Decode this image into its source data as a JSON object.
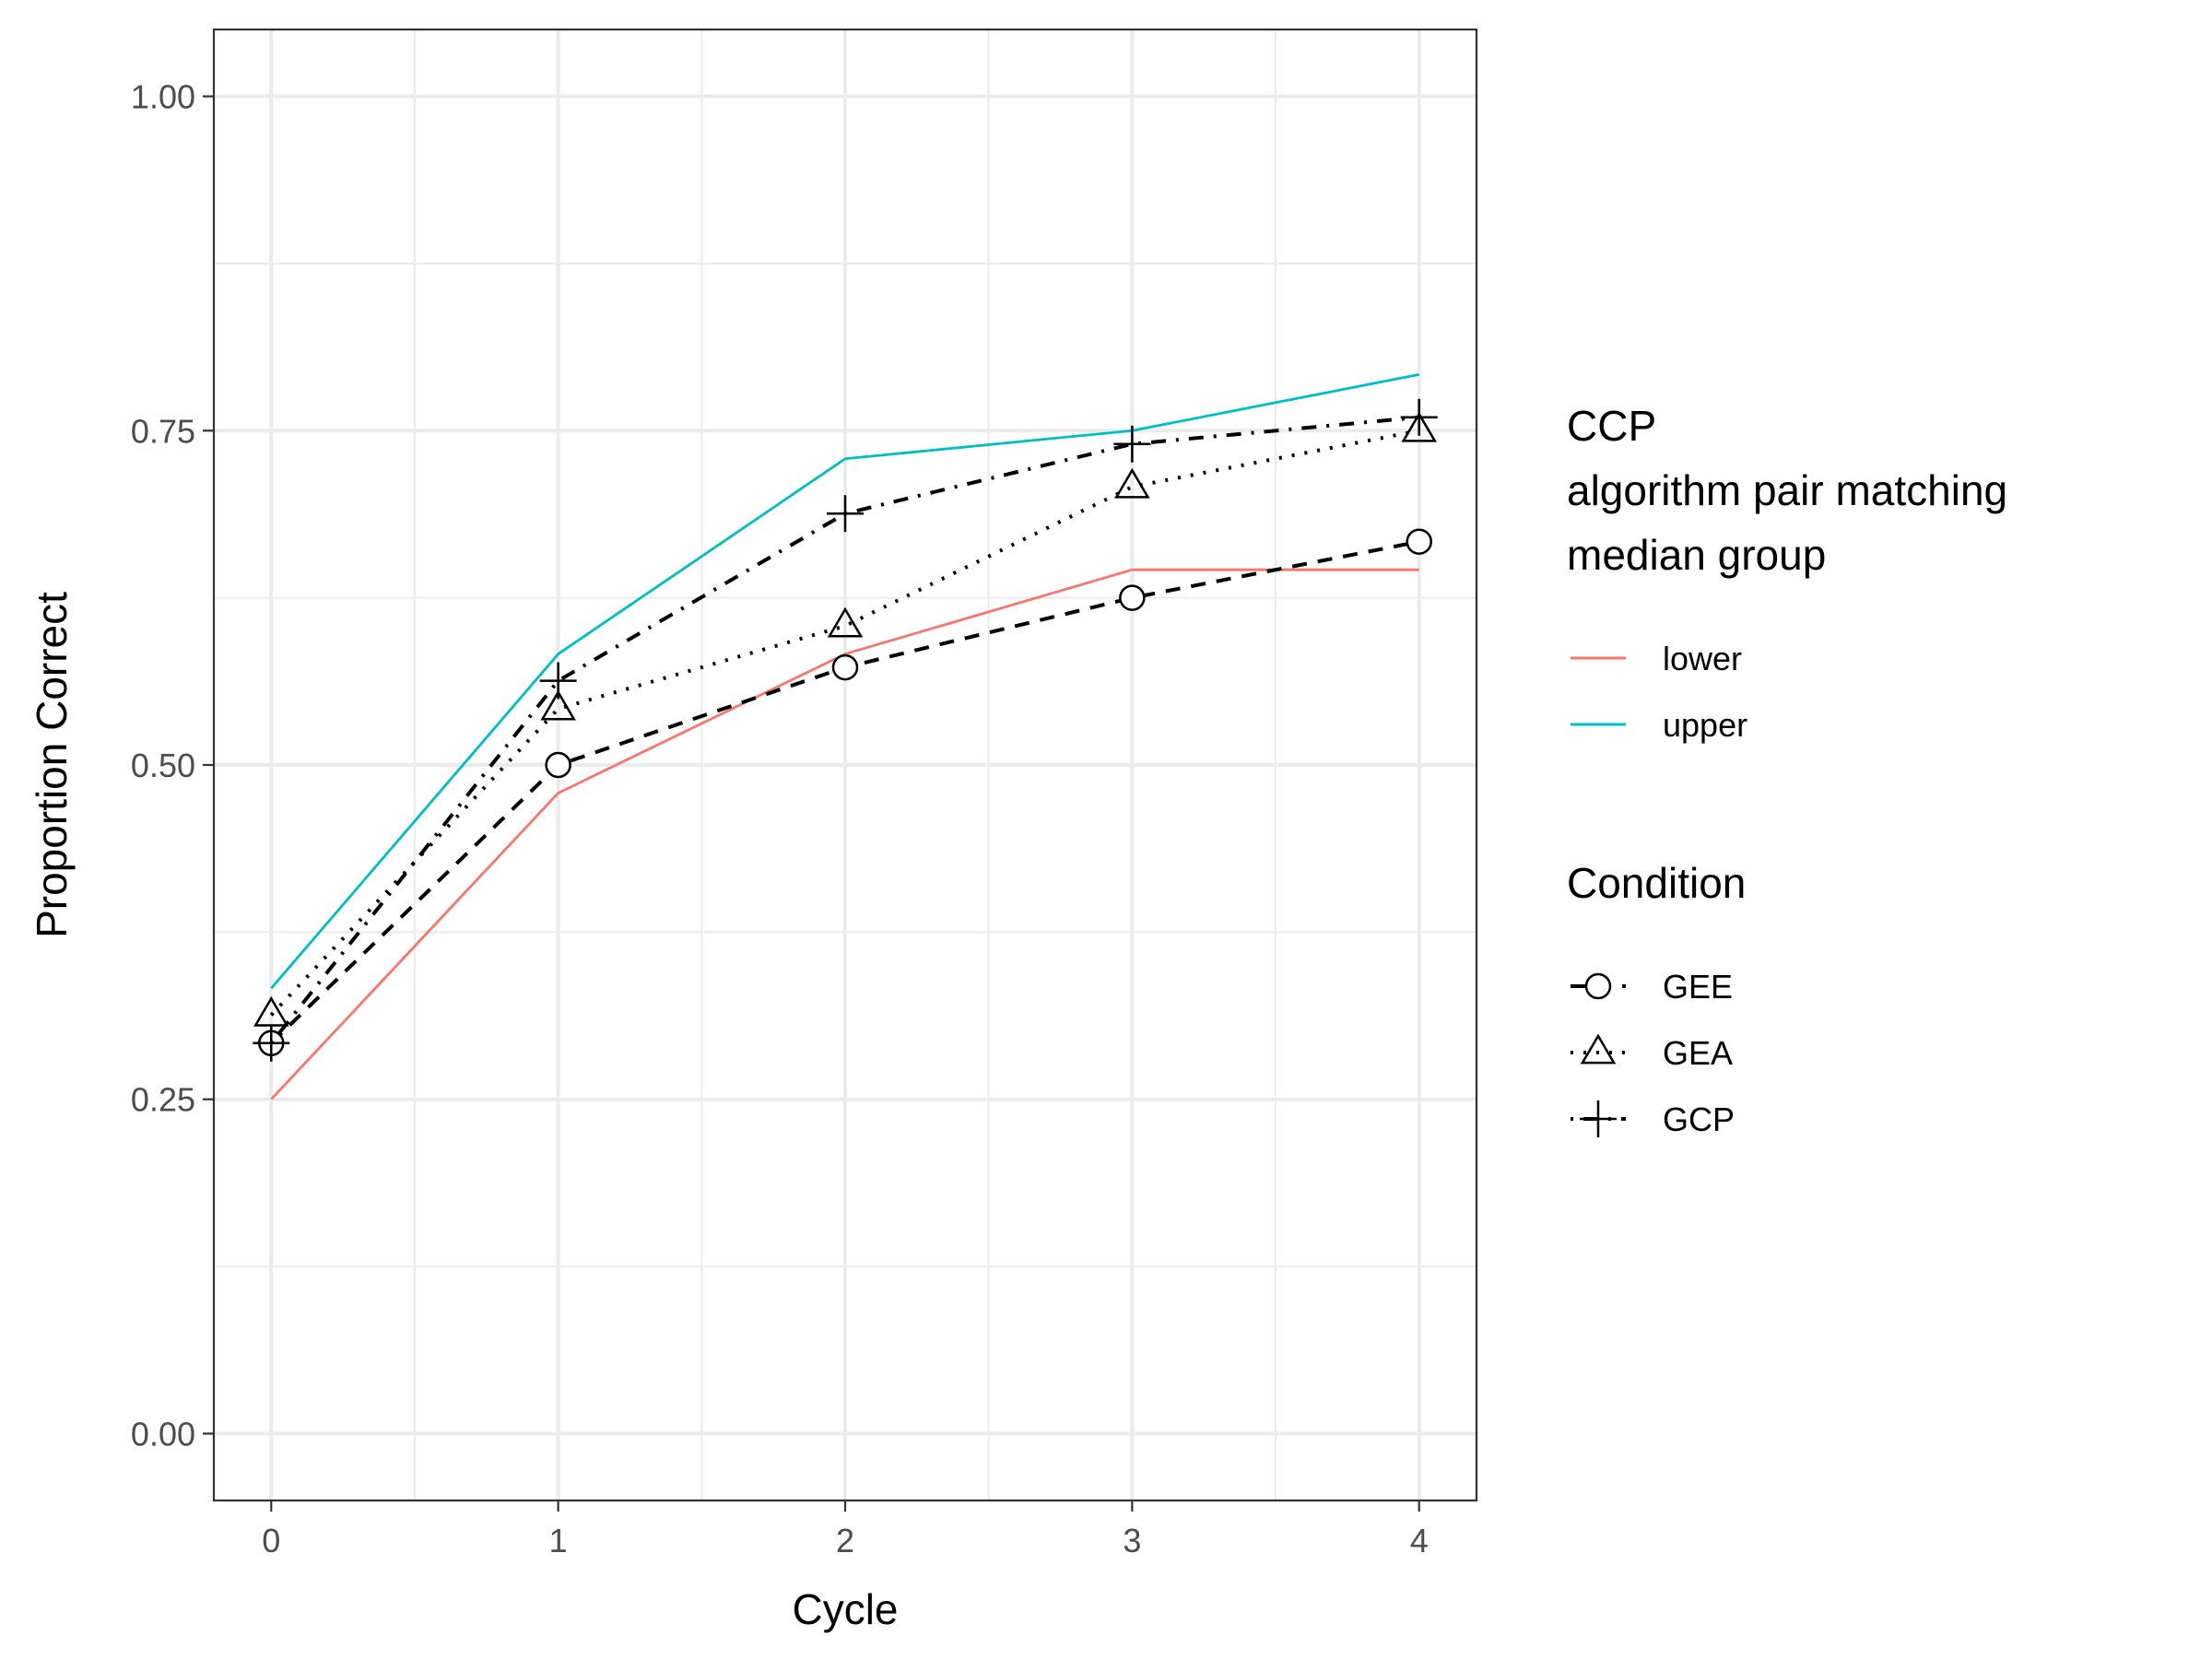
{
  "chart_data": {
    "type": "line",
    "xlabel": "Cycle",
    "ylabel": "Proportion Correct",
    "xlim": [
      -0.2,
      4.2
    ],
    "ylim": [
      -0.05,
      1.05
    ],
    "x_ticks": [
      0,
      1,
      2,
      3,
      4
    ],
    "x_tick_labels": [
      "0",
      "1",
      "2",
      "3",
      "4"
    ],
    "y_ticks": [
      0,
      0.25,
      0.5,
      0.75,
      1.0
    ],
    "y_tick_labels": [
      "0.00",
      "0.25",
      "0.50",
      "0.75",
      "1.00"
    ],
    "grid": true,
    "legend_position": "right",
    "color_legend": {
      "title_lines": [
        "CCP",
        "algorithm pair matching",
        "median group"
      ],
      "entries": [
        {
          "name": "lower",
          "color": "#F8766D"
        },
        {
          "name": "upper",
          "color": "#00BFC4"
        }
      ]
    },
    "shape_legend": {
      "title": "Condition",
      "entries": [
        {
          "name": "GEE",
          "shape": "circle",
          "linetype": "dashed"
        },
        {
          "name": "GEA",
          "shape": "triangle",
          "linetype": "dotted"
        },
        {
          "name": "GCP",
          "shape": "plus",
          "linetype": "dotdash"
        }
      ]
    },
    "series": [
      {
        "name": "lower",
        "group": "CCP algorithm pair matching median group",
        "color": "#F8766D",
        "x": [
          0,
          1,
          2,
          3,
          4
        ],
        "values": [
          0.25,
          0.479,
          0.583,
          0.646,
          0.646
        ]
      },
      {
        "name": "upper",
        "group": "CCP algorithm pair matching median group",
        "color": "#00BFC4",
        "x": [
          0,
          1,
          2,
          3,
          4
        ],
        "values": [
          0.333,
          0.583,
          0.729,
          0.75,
          0.792
        ]
      },
      {
        "name": "GEE",
        "group": "Condition",
        "color": "#000000",
        "shape": "circle",
        "linetype": "dashed",
        "x": [
          0,
          1,
          2,
          3,
          4
        ],
        "values": [
          0.292,
          0.5,
          0.573,
          0.625,
          0.667
        ]
      },
      {
        "name": "GEA",
        "group": "Condition",
        "color": "#000000",
        "shape": "triangle",
        "linetype": "dotted",
        "x": [
          0,
          1,
          2,
          3,
          4
        ],
        "values": [
          0.313,
          0.542,
          0.604,
          0.708,
          0.75
        ]
      },
      {
        "name": "GCP",
        "group": "Condition",
        "color": "#000000",
        "shape": "plus",
        "linetype": "dotdash",
        "x": [
          0,
          1,
          2,
          3,
          4
        ],
        "values": [
          0.292,
          0.563,
          0.688,
          0.74,
          0.76
        ]
      }
    ]
  }
}
